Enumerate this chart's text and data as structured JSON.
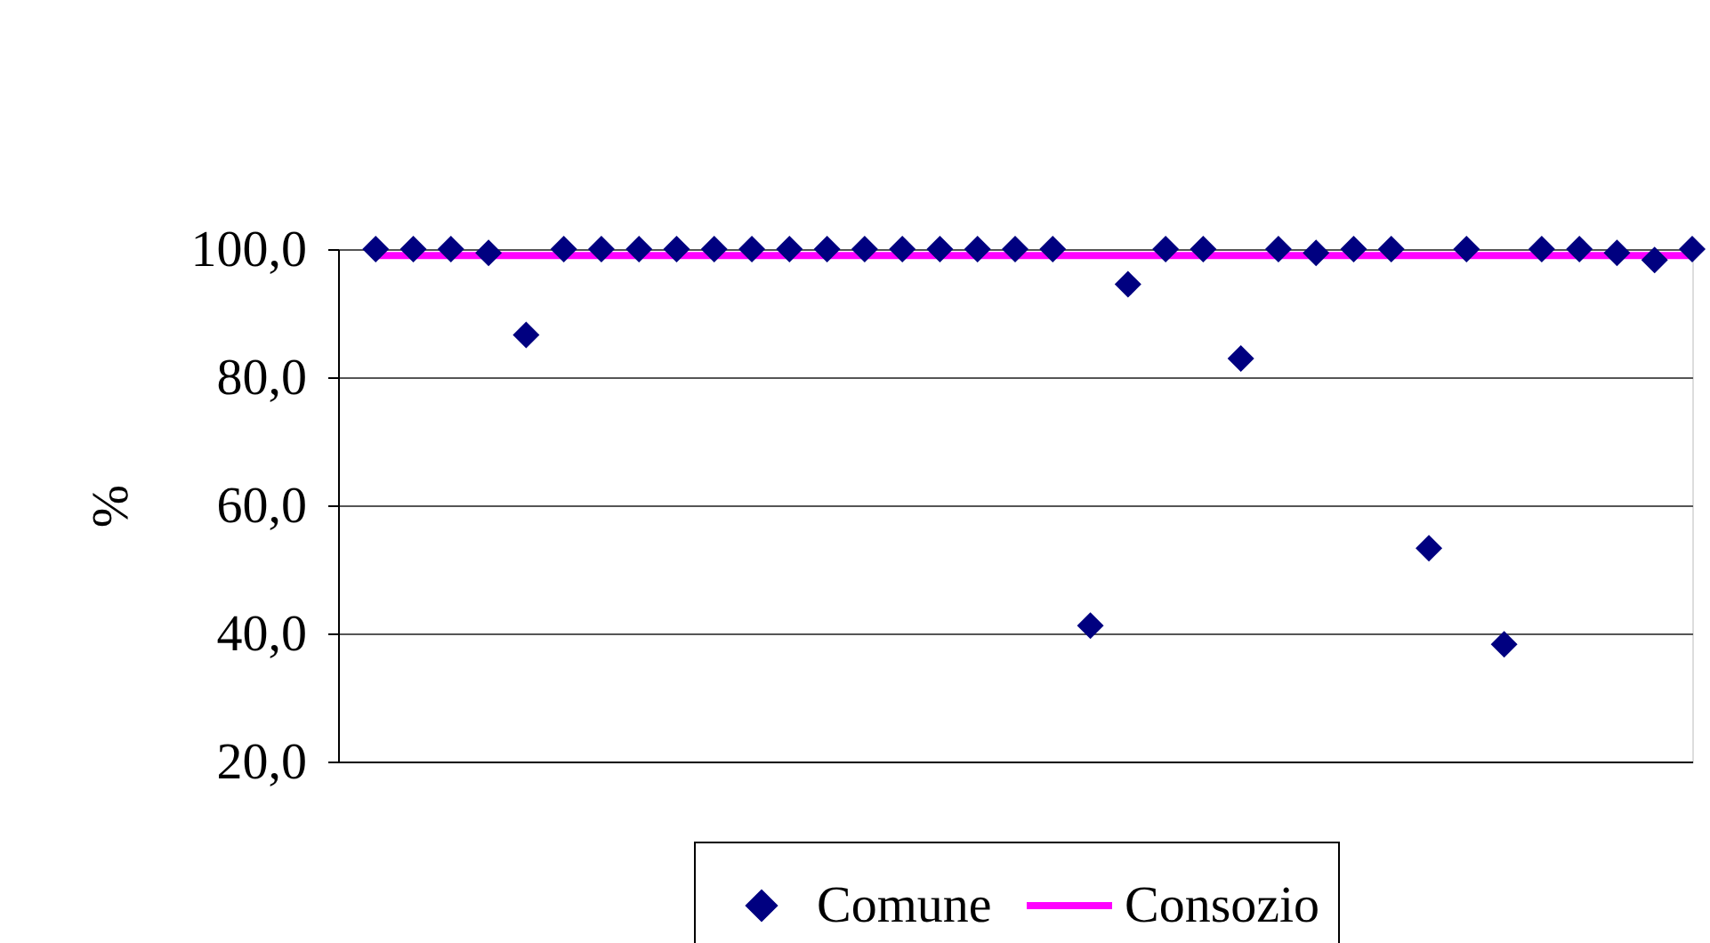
{
  "chart_data": {
    "type": "scatter",
    "ylabel": "%",
    "categories": [
      null,
      null,
      null,
      null,
      null,
      null,
      null,
      null,
      null,
      null,
      null,
      null,
      null,
      null,
      null,
      null,
      null,
      null,
      null,
      null,
      null,
      null,
      null,
      null,
      null,
      null,
      null,
      null,
      null,
      null,
      null,
      null,
      null,
      null,
      null,
      null
    ],
    "ylim": [
      20,
      100
    ],
    "yticks": [
      {
        "value": 20,
        "label": "20,0"
      },
      {
        "value": 40,
        "label": "40,0"
      },
      {
        "value": 60,
        "label": "60,0"
      },
      {
        "value": 80,
        "label": "80,0"
      },
      {
        "value": 100,
        "label": "100,0"
      }
    ],
    "grid": "y",
    "legend": "bottom",
    "tick_labels": "y",
    "marker": "diamond",
    "series": [
      {
        "name": "Comune",
        "color": "#000080",
        "values": [
          100,
          100,
          100,
          99.4,
          86.6,
          100,
          100,
          100,
          100,
          100,
          100,
          100,
          100,
          100,
          100,
          100,
          100,
          100,
          100,
          41.2,
          94.5,
          100,
          100,
          82.9,
          100,
          99.4,
          100,
          100,
          53.3,
          100,
          38.3,
          100,
          100,
          99.4,
          98.3,
          100
        ]
      },
      {
        "name": "Consozio",
        "type": "line",
        "marker": "none",
        "line_style": "solid",
        "color": "#ff00ff",
        "values": [
          99,
          99,
          99,
          99,
          99,
          99,
          99,
          99,
          99,
          99,
          99,
          99,
          99,
          99,
          99,
          99,
          99,
          99,
          99,
          99,
          99,
          99,
          99,
          99,
          99,
          99,
          99,
          99,
          99,
          99,
          99,
          99,
          99,
          99,
          99,
          99
        ]
      }
    ]
  }
}
